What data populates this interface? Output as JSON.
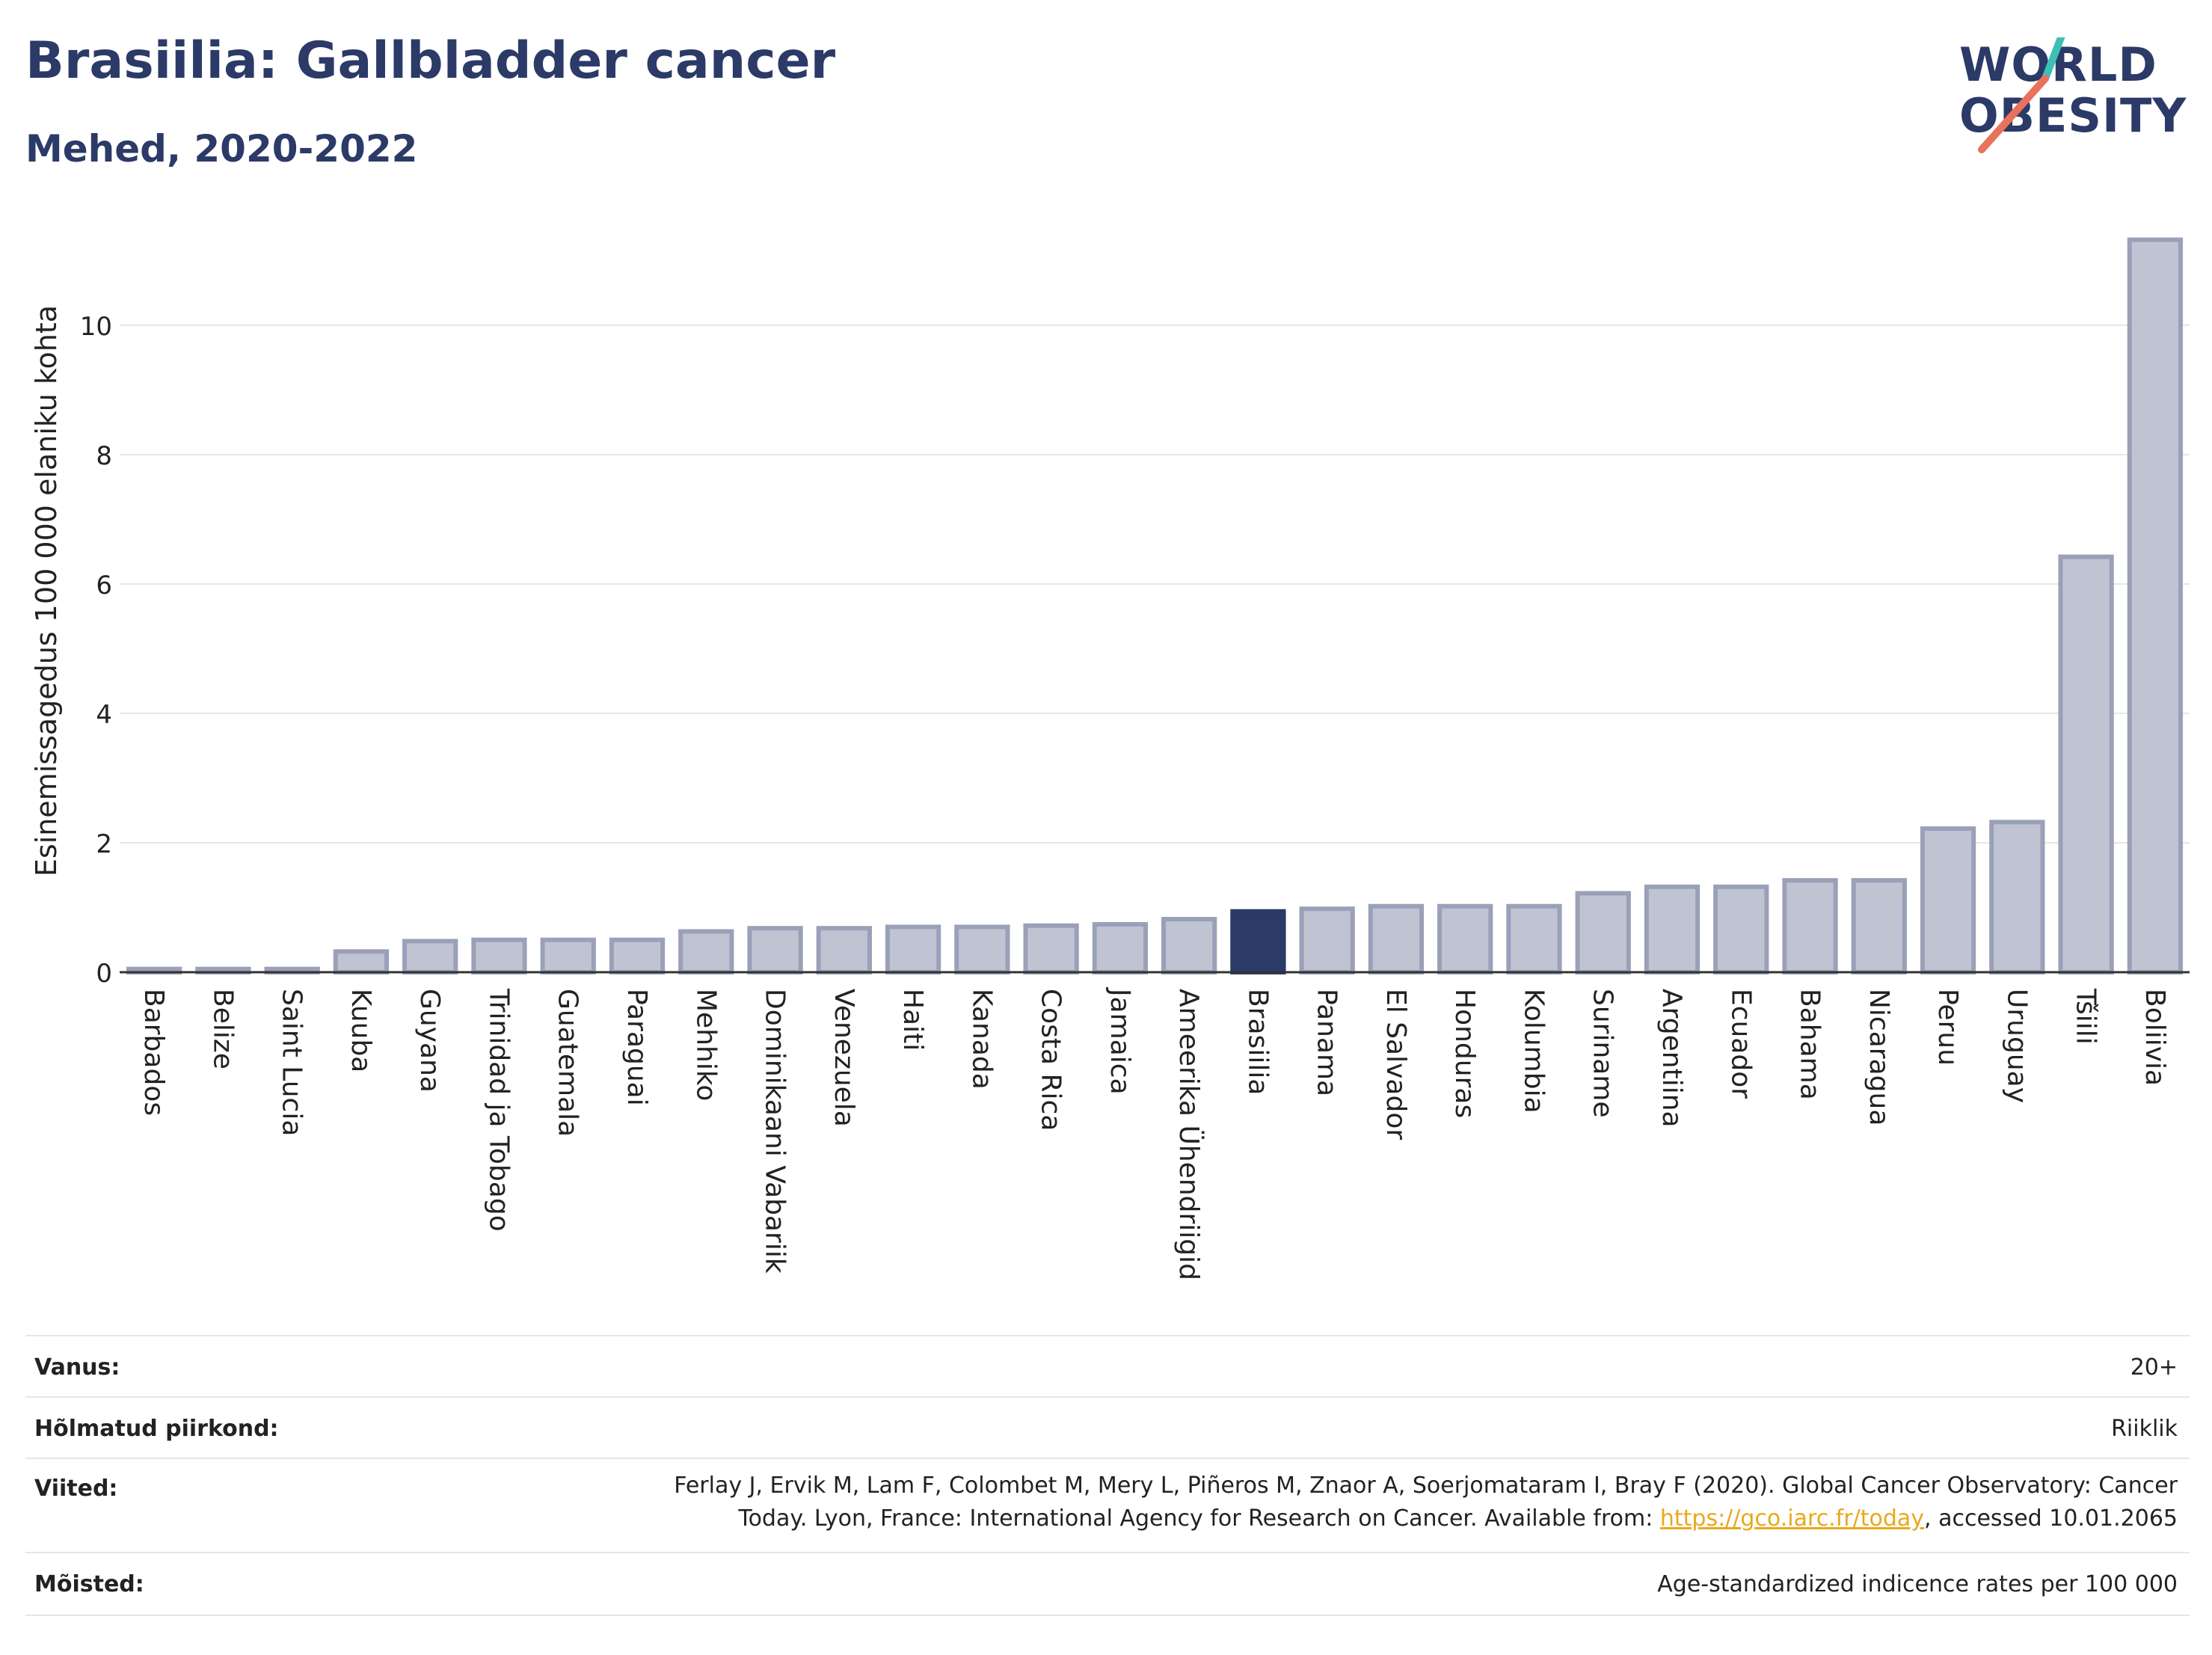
{
  "header": {
    "title": "Brasiilia: Gallbladder cancer",
    "subtitle": "Mehed, 2020-2022"
  },
  "logo": {
    "line1": "WORLD",
    "line2": "OBESITY"
  },
  "chart_data": {
    "type": "bar",
    "title": "Brasiilia: Gallbladder cancer",
    "subtitle": "Mehed, 2020-2022",
    "xlabel": "",
    "ylabel": "Esinemissagedus 100 000 elaniku kohta",
    "ylim": [
      0,
      11.5
    ],
    "yticks": [
      0,
      2,
      4,
      6,
      8,
      10
    ],
    "grid": true,
    "highlight": "Brasiilia",
    "colors": {
      "bar": "#c0c4d2",
      "bar_edge": "#9aa0b8",
      "highlight": "#2b3a67"
    },
    "categories": [
      "Barbados",
      "Belize",
      "Saint Lucia",
      "Kuuba",
      "Guyana",
      "Trinidad ja Tobago",
      "Guatemala",
      "Paraguai",
      "Mehhiko",
      "Dominikaani Vabariik",
      "Venezuela",
      "Haiti",
      "Kanada",
      "Costa Rica",
      "Jamaica",
      "Ameerika Ühendriigid",
      "Brasiilia",
      "Panama",
      "El Salvador",
      "Honduras",
      "Kolumbia",
      "Suriname",
      "Argentiina",
      "Ecuador",
      "Bahama",
      "Nicaragua",
      "Peruu",
      "Uruguay",
      "Tšiili",
      "Boliivia"
    ],
    "values": [
      0.05,
      0.05,
      0.05,
      0.32,
      0.48,
      0.5,
      0.5,
      0.5,
      0.63,
      0.68,
      0.68,
      0.7,
      0.7,
      0.72,
      0.74,
      0.82,
      0.94,
      0.98,
      1.02,
      1.02,
      1.02,
      1.22,
      1.32,
      1.32,
      1.42,
      1.42,
      2.22,
      2.32,
      6.42,
      11.32
    ]
  },
  "meta": {
    "rows": [
      {
        "key": "Vanus:",
        "value": "20+"
      },
      {
        "key": "Hõlmatud piirkond:",
        "value": "Riiklik"
      },
      {
        "key": "Viited:",
        "value_line1": "Ferlay J, Ervik M, Lam F, Colombet M, Mery L, Piñeros M, Znaor A, Soerjomataram I, Bray F (2020). Global Cancer Observatory: Cancer",
        "value_line2_pre": "Today. Lyon, France: International Agency for Research on Cancer. Available from: ",
        "link": "https://gco.iarc.fr/today",
        "value_line2_post": ", accessed 10.01.2065"
      },
      {
        "key": "Mõisted:",
        "value": "Age-standardized indicence rates per 100 000"
      }
    ]
  }
}
